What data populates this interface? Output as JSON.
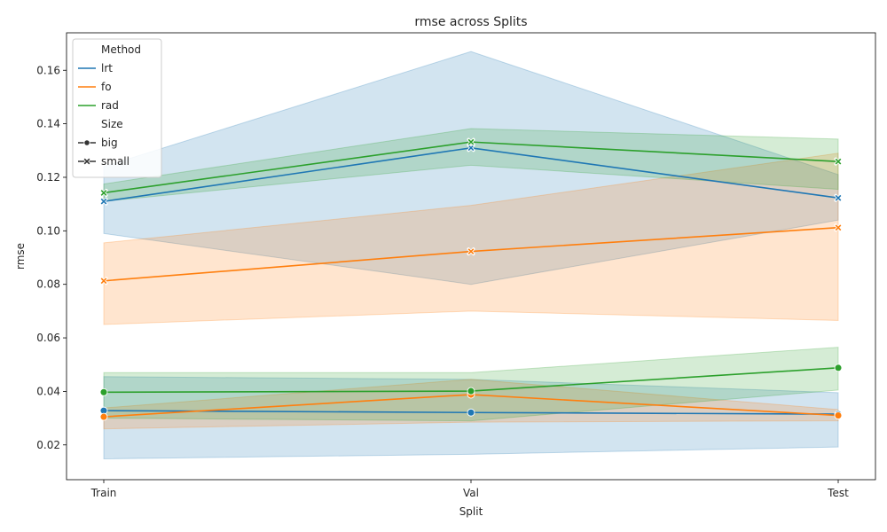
{
  "chart_data": {
    "type": "line",
    "title": "rmse across Splits",
    "xlabel": "Split",
    "ylabel": "rmse",
    "categories": [
      "Train",
      "Val",
      "Test"
    ],
    "ylim": [
      0.007,
      0.174
    ],
    "yticks": [
      0.02,
      0.04,
      0.06,
      0.08,
      0.1,
      0.12,
      0.14,
      0.16
    ],
    "ytick_labels": [
      "0.02",
      "0.04",
      "0.06",
      "0.08",
      "0.10",
      "0.12",
      "0.14",
      "0.16"
    ],
    "grid": false,
    "legend": {
      "placement": "upper-left",
      "hue_title": "Method",
      "size_title": "Size",
      "methods": [
        {
          "name": "lrt",
          "color": "#1f77b4"
        },
        {
          "name": "fo",
          "color": "#ff7f0e"
        },
        {
          "name": "rad",
          "color": "#2ca02c"
        }
      ],
      "sizes": [
        {
          "name": "big",
          "marker": "circle"
        },
        {
          "name": "small",
          "marker": "x"
        }
      ]
    },
    "series": [
      {
        "method": "lrt",
        "size": "small",
        "values": [
          0.111,
          0.131,
          0.1123
        ],
        "lower": [
          0.099,
          0.08,
          0.104
        ],
        "upper": [
          0.124,
          0.167,
          0.121
        ]
      },
      {
        "method": "fo",
        "size": "small",
        "values": [
          0.0813,
          0.0923,
          0.1012
        ],
        "lower": [
          0.065,
          0.07,
          0.0665
        ],
        "upper": [
          0.0955,
          0.1095,
          0.129
        ]
      },
      {
        "method": "rad",
        "size": "small",
        "values": [
          0.1142,
          0.1332,
          0.1259
        ],
        "lower": [
          0.111,
          0.1245,
          0.1155
        ],
        "upper": [
          0.1175,
          0.1382,
          0.1343
        ]
      },
      {
        "method": "lrt",
        "size": "big",
        "values": [
          0.0328,
          0.0321,
          0.0315
        ],
        "lower": [
          0.0148,
          0.0165,
          0.0192
        ],
        "upper": [
          0.0455,
          0.0445,
          0.0395
        ]
      },
      {
        "method": "fo",
        "size": "big",
        "values": [
          0.0305,
          0.0388,
          0.031
        ],
        "lower": [
          0.026,
          0.0285,
          0.029
        ],
        "upper": [
          0.0338,
          0.0445,
          0.0332
        ]
      },
      {
        "method": "rad",
        "size": "big",
        "values": [
          0.0397,
          0.0401,
          0.0488
        ],
        "lower": [
          0.03,
          0.029,
          0.0405
        ],
        "upper": [
          0.047,
          0.047,
          0.0565
        ]
      }
    ]
  }
}
